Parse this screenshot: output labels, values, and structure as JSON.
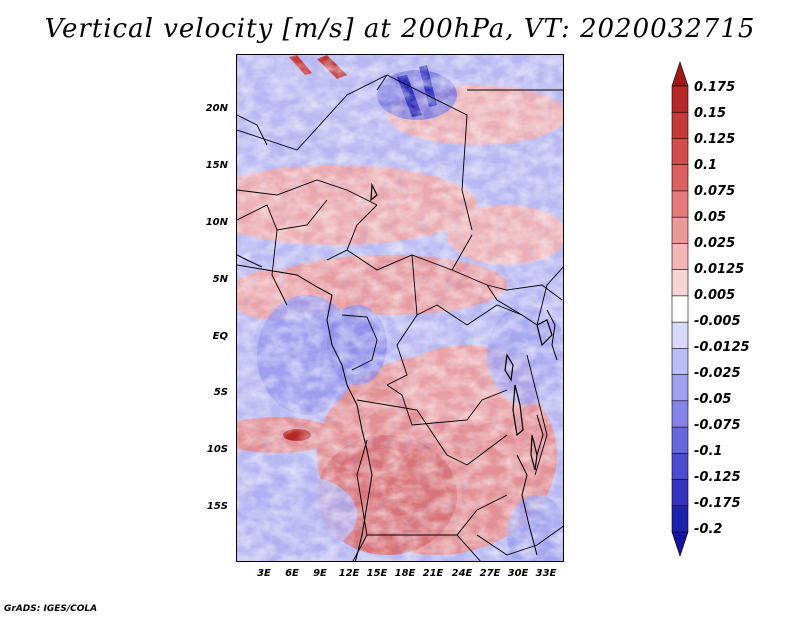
{
  "title": "Vertical velocity [m/s] at 200hPa, VT: 2020032715",
  "map": {
    "lat_labels": [
      "20N",
      "15N",
      "10N",
      "5N",
      "EQ",
      "5S",
      "10S",
      "15S"
    ],
    "lon_labels": [
      "3E",
      "6E",
      "9E",
      "12E",
      "15E",
      "18E",
      "21E",
      "24E",
      "27E",
      "30E",
      "33E"
    ],
    "field": "vertical velocity",
    "units": "m/s",
    "level": "200hPa",
    "valid_time": "2020032715"
  },
  "colorbar": {
    "labels": [
      "0.175",
      "0.15",
      "0.125",
      "0.1",
      "0.075",
      "0.05",
      "0.025",
      "0.0125",
      "0.005",
      "-0.005",
      "-0.0125",
      "-0.025",
      "-0.05",
      "-0.075",
      "-0.1",
      "-0.125",
      "-0.175",
      "-0.2"
    ],
    "colors": [
      "#a01818",
      "#b82828",
      "#c83a3a",
      "#d44c4c",
      "#dc6060",
      "#e47a7a",
      "#ec9898",
      "#f2b6b6",
      "#f8d4d4",
      "#ffffff",
      "#d8d8f8",
      "#bcbcf4",
      "#a0a0f0",
      "#8484e8",
      "#6868dc",
      "#4c4cd0",
      "#3434c0",
      "#2020b0",
      "#14149c"
    ]
  },
  "credit": "GrADS: IGES/COLA"
}
